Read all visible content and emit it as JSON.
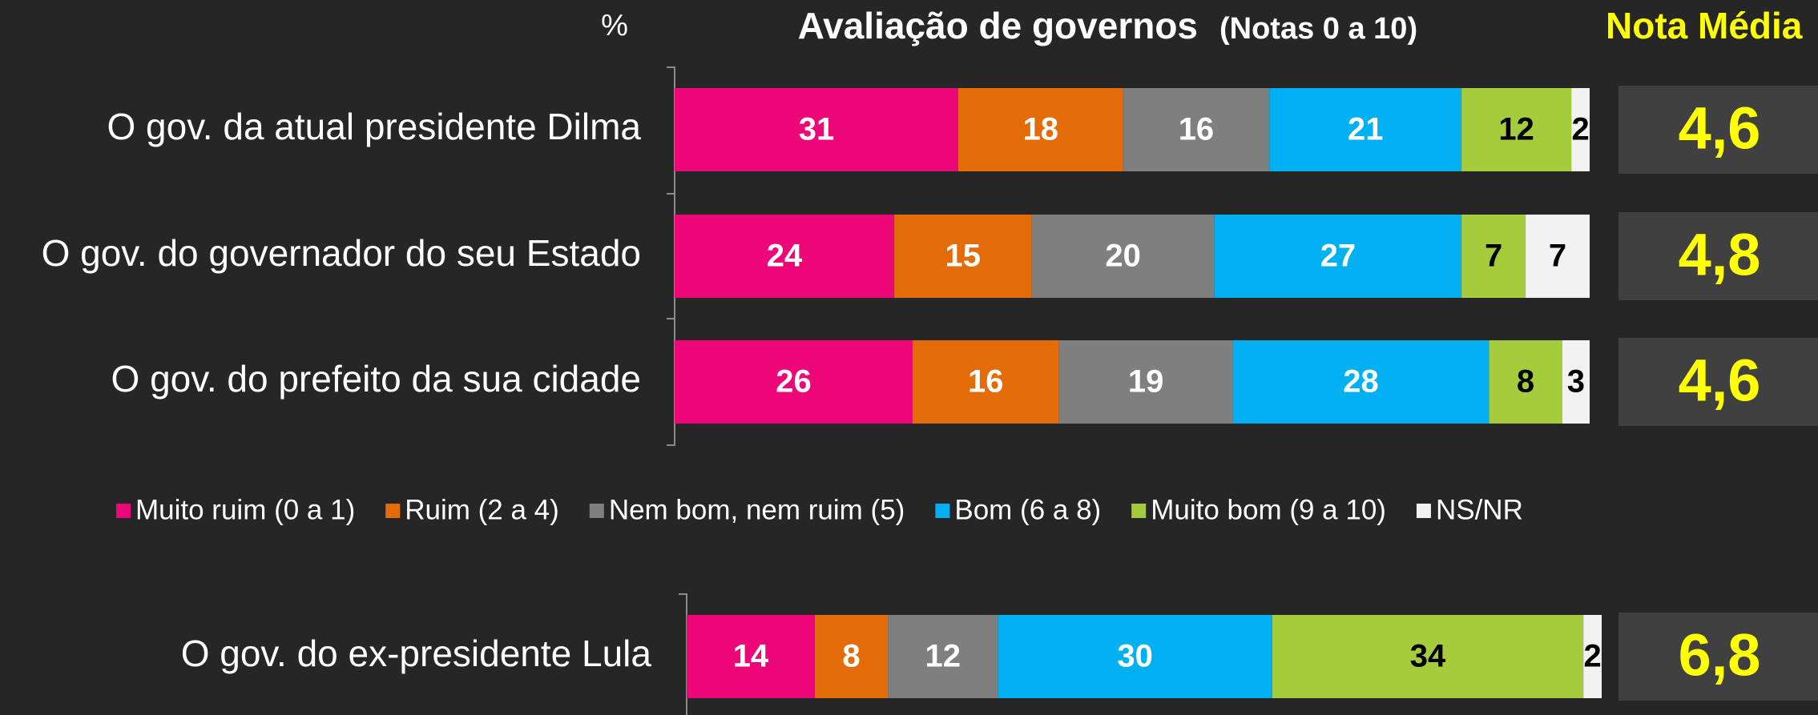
{
  "chart_data": {
    "type": "stacked_bar_horizontal",
    "title": "Avaliação de governos",
    "subtitle": "(Notas 0 a 10)",
    "unit_label": "%",
    "xlim": [
      0,
      100
    ],
    "categories": [
      "O gov. da atual presidente Dilma",
      "O gov. do governador do seu Estado",
      "O gov. do prefeito da sua cidade",
      "O gov. do ex-presidente Lula"
    ],
    "series": [
      {
        "name": "Muito ruim (0 a 1)",
        "color": "#ec0677",
        "label_color": "#ffffff",
        "values": [
          31,
          24,
          26,
          14
        ]
      },
      {
        "name": "Ruim (2 a 4)",
        "color": "#e36c09",
        "label_color": "#ffffff",
        "values": [
          18,
          15,
          16,
          8
        ]
      },
      {
        "name": "Nem bom, nem ruim (5)",
        "color": "#7f7f7f",
        "label_color": "#ffffff",
        "values": [
          16,
          20,
          19,
          12
        ]
      },
      {
        "name": "Bom (6 a 8)",
        "color": "#00b0f0",
        "label_color": "#ffffff",
        "values": [
          21,
          27,
          28,
          30
        ]
      },
      {
        "name": "Muito bom (9 a 10)",
        "color": "#a4cc3c",
        "label_color": "#000000",
        "values": [
          12,
          7,
          8,
          34
        ]
      },
      {
        "name": "NS/NR",
        "color": "#f2f2f2",
        "label_color": "#000000",
        "values": [
          2,
          7,
          3,
          2
        ]
      }
    ],
    "nota_media": {
      "title": "Nota Média",
      "values": [
        4.6,
        4.8,
        4.6,
        6.8
      ],
      "value_labels": [
        "4,6",
        "4,8",
        "4,6",
        "6,8"
      ]
    }
  }
}
